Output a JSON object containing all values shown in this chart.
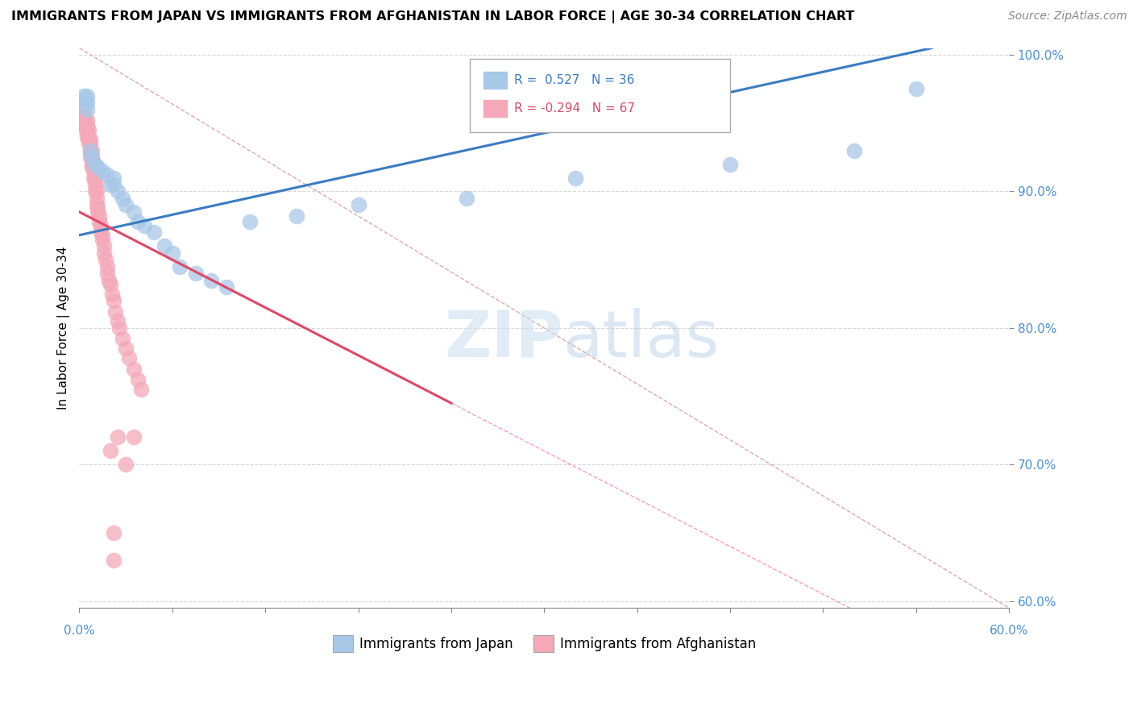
{
  "title": "IMMIGRANTS FROM JAPAN VS IMMIGRANTS FROM AFGHANISTAN IN LABOR FORCE | AGE 30-34 CORRELATION CHART",
  "source": "Source: ZipAtlas.com",
  "ylabel": "In Labor Force | Age 30-34",
  "R_japan": 0.527,
  "N_japan": 36,
  "R_afghanistan": -0.294,
  "N_afghanistan": 67,
  "japan_color": "#a8c8e8",
  "afghanistan_color": "#f4a8b8",
  "japan_line_color": "#3a7cc4",
  "afghanistan_line_color": "#e04868",
  "japan_points_x": [
    0.003,
    0.004,
    0.004,
    0.005,
    0.005,
    0.005,
    0.007,
    0.008,
    0.01,
    0.012,
    0.015,
    0.018,
    0.02,
    0.022,
    0.022,
    0.025,
    0.028,
    0.03,
    0.035,
    0.038,
    0.042,
    0.048,
    0.055,
    0.06,
    0.065,
    0.075,
    0.085,
    0.095,
    0.11,
    0.14,
    0.18,
    0.25,
    0.32,
    0.42,
    0.5,
    0.54
  ],
  "japan_points_y": [
    0.97,
    0.968,
    0.965,
    0.97,
    0.965,
    0.96,
    0.93,
    0.925,
    0.92,
    0.918,
    0.915,
    0.912,
    0.905,
    0.91,
    0.905,
    0.9,
    0.895,
    0.89,
    0.885,
    0.878,
    0.875,
    0.87,
    0.86,
    0.855,
    0.845,
    0.84,
    0.835,
    0.83,
    0.878,
    0.882,
    0.89,
    0.895,
    0.91,
    0.92,
    0.93,
    0.975
  ],
  "afghanistan_points_x": [
    0.002,
    0.002,
    0.003,
    0.003,
    0.003,
    0.004,
    0.004,
    0.004,
    0.005,
    0.005,
    0.005,
    0.005,
    0.006,
    0.006,
    0.006,
    0.006,
    0.007,
    0.007,
    0.007,
    0.007,
    0.007,
    0.008,
    0.008,
    0.008,
    0.008,
    0.009,
    0.009,
    0.009,
    0.01,
    0.01,
    0.01,
    0.01,
    0.011,
    0.011,
    0.011,
    0.012,
    0.012,
    0.013,
    0.013,
    0.014,
    0.014,
    0.015,
    0.015,
    0.016,
    0.016,
    0.017,
    0.018,
    0.018,
    0.019,
    0.02,
    0.021,
    0.022,
    0.023,
    0.025,
    0.026,
    0.028,
    0.03,
    0.032,
    0.035,
    0.038,
    0.04,
    0.025,
    0.02,
    0.03,
    0.035,
    0.022,
    0.022
  ],
  "afghanistan_points_y": [
    0.96,
    0.955,
    0.96,
    0.955,
    0.95,
    0.952,
    0.948,
    0.945,
    0.952,
    0.948,
    0.945,
    0.94,
    0.945,
    0.94,
    0.938,
    0.935,
    0.938,
    0.935,
    0.93,
    0.928,
    0.925,
    0.93,
    0.925,
    0.92,
    0.918,
    0.92,
    0.915,
    0.91,
    0.912,
    0.908,
    0.905,
    0.9,
    0.9,
    0.895,
    0.89,
    0.888,
    0.885,
    0.882,
    0.878,
    0.875,
    0.87,
    0.868,
    0.865,
    0.86,
    0.855,
    0.85,
    0.845,
    0.84,
    0.835,
    0.832,
    0.825,
    0.82,
    0.812,
    0.805,
    0.8,
    0.792,
    0.785,
    0.778,
    0.77,
    0.762,
    0.755,
    0.72,
    0.71,
    0.7,
    0.72,
    0.65,
    0.63
  ],
  "xlim": [
    0.0,
    0.6
  ],
  "ylim": [
    0.595,
    1.005
  ],
  "yticks": [
    0.6,
    0.7,
    0.8,
    0.9,
    1.0
  ],
  "ytick_labels": [
    "60.0%",
    "70.0%",
    "80.0%",
    "90.0%",
    "100.0%"
  ],
  "grid_color": "#d8d8d8",
  "background_color": "#ffffff"
}
